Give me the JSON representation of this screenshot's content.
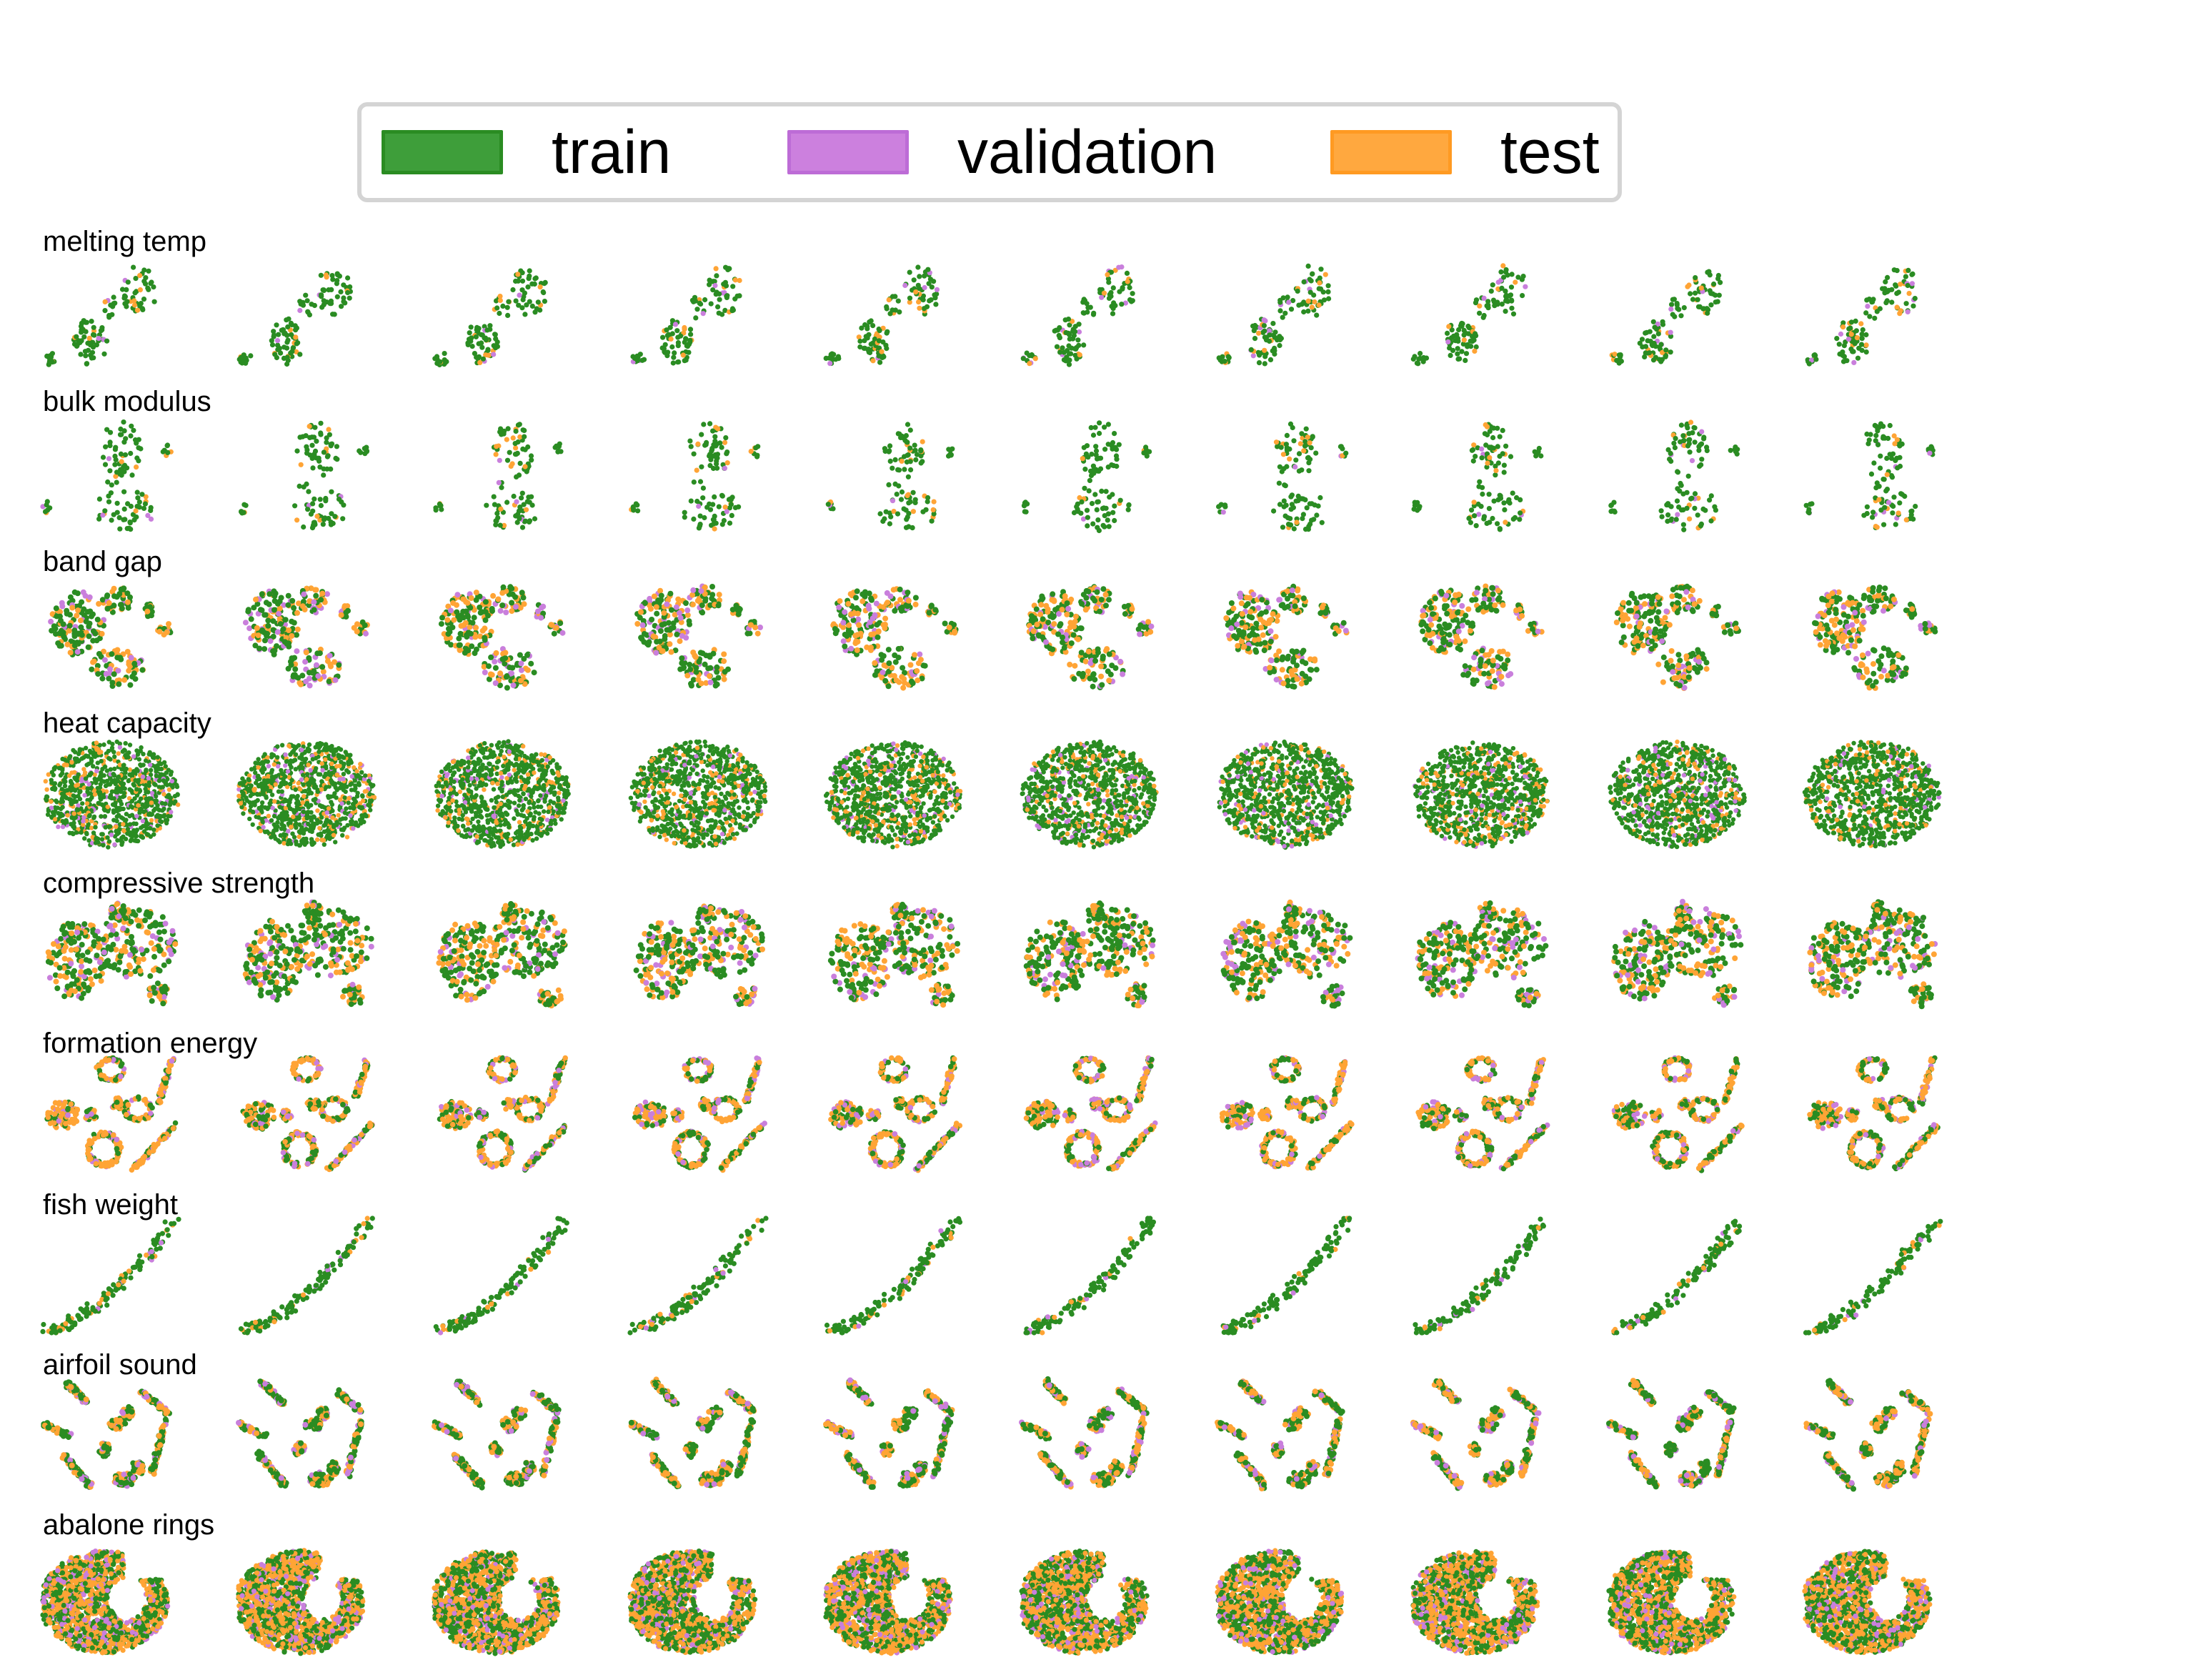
{
  "chart_data": {
    "type": "scatter",
    "description_of_layout": "grid of dataset splits",
    "series": [
      {
        "name": "train",
        "color": "#2a8c22"
      },
      {
        "name": "validation",
        "color": "#c97fdc"
      },
      {
        "name": "test",
        "color": "#ffa435"
      }
    ],
    "legend_placement": "top-center",
    "axes_visible": false,
    "columns": 10,
    "rows": [
      {
        "title": "melting temp",
        "shape": "melting"
      },
      {
        "title": "bulk modulus",
        "shape": "bulk"
      },
      {
        "title": "band gap",
        "shape": "bandgap"
      },
      {
        "title": "heat capacity",
        "shape": "heat"
      },
      {
        "title": "compressive strength",
        "shape": "compressive"
      },
      {
        "title": "formation energy",
        "shape": "formation"
      },
      {
        "title": "fish weight",
        "shape": "fish"
      },
      {
        "title": "airfoil sound",
        "shape": "airfoil"
      },
      {
        "title": "abalone rings",
        "shape": "abalone"
      }
    ]
  },
  "legend": {
    "train": "train",
    "validation": "validation",
    "test": "test"
  }
}
